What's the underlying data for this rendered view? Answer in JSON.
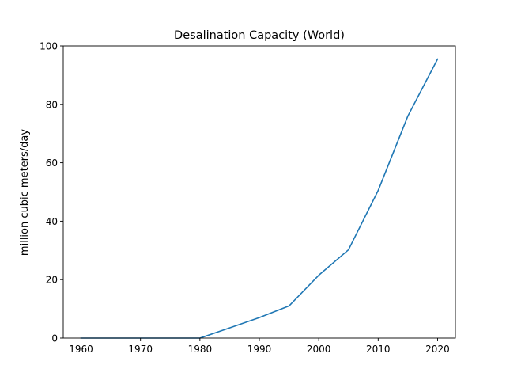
{
  "chart_data": {
    "type": "line",
    "title": "Desalination Capacity (World)",
    "xlabel": "",
    "ylabel": "million cubic meters/day",
    "xlim": [
      1957,
      2023
    ],
    "ylim": [
      0,
      100
    ],
    "xticks": [
      1960,
      1970,
      1980,
      1990,
      2000,
      2010,
      2020
    ],
    "yticks": [
      0,
      20,
      40,
      60,
      80,
      100
    ],
    "grid": false,
    "series": [
      {
        "color": "#1f77b4",
        "x": [
          1960,
          1965,
          1970,
          1975,
          1980,
          1985,
          1990,
          1995,
          2000,
          2005,
          2010,
          2015,
          2020
        ],
        "y": [
          0,
          0,
          0,
          0,
          0,
          3.5,
          7,
          11,
          21.5,
          30.2,
          50.5,
          76,
          95.5
        ]
      }
    ]
  }
}
